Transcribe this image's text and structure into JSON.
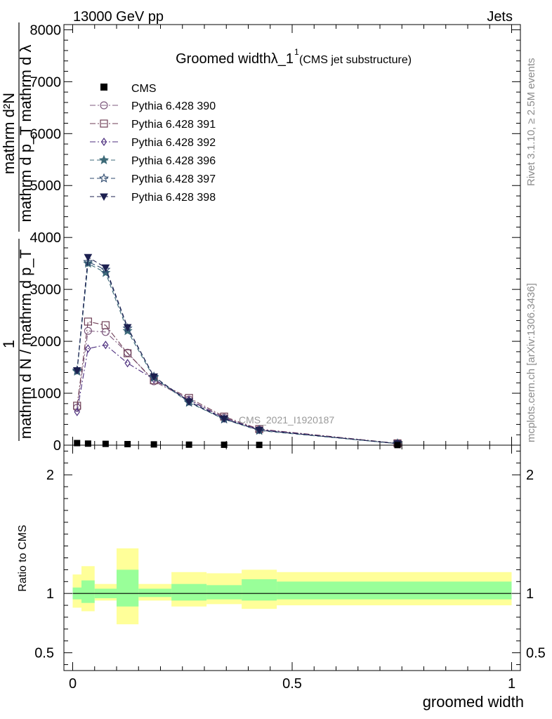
{
  "header": {
    "left": "13000 GeV pp",
    "right": "Jets"
  },
  "side_labels": {
    "top": "Rivet 3.1.10, ≥ 2.5M events",
    "bottom": "mcplots.cern.ch [arXiv:1306.3436]"
  },
  "watermark": "CMS_2021_I1920187",
  "chart_data": {
    "type": "line",
    "title": "Groomed widthλ_1",
    "title_sup": "1",
    "subtitle": "(CMS jet substructure)",
    "ylabel_num": "mathrm d²N",
    "ylabel_den": "mathrm d p_T mathrm d λ",
    "ylabel_frac_num": "1",
    "ylabel_frac_den": "mathrm d N / mathrm d p_T",
    "xlabel": "groomed width",
    "ratio_ylabel": "Ratio to CMS",
    "xlim": [
      -0.02,
      1.02
    ],
    "ylim": [
      0,
      8100
    ],
    "ratio_ylim": [
      0.35,
      2.25
    ],
    "x_ticks": [
      "0",
      "0.5",
      "1"
    ],
    "y_ticks": [
      "0",
      "1000",
      "2000",
      "3000",
      "4000",
      "5000",
      "6000",
      "7000",
      "8000"
    ],
    "ratio_ticks": [
      "0.5",
      "1",
      "2"
    ],
    "x": [
      0.01,
      0.035,
      0.075,
      0.125,
      0.185,
      0.265,
      0.345,
      0.425,
      0.74
    ],
    "cms": [
      40,
      30,
      25,
      20,
      15,
      10,
      8,
      5,
      2
    ],
    "series": [
      {
        "name": "Pythia 6.428 390",
        "marker": "circle-open",
        "dash": "8,3,2,3",
        "color": "#7e5a7e",
        "values": [
          720,
          2200,
          2180,
          1780,
          1230,
          880,
          530,
          300,
          30
        ]
      },
      {
        "name": "Pythia 6.428 391",
        "marker": "square-open",
        "dash": "8,3,2,3",
        "color": "#6e3e55",
        "values": [
          760,
          2380,
          2310,
          1770,
          1250,
          910,
          550,
          310,
          35
        ]
      },
      {
        "name": "Pythia 6.428 392",
        "marker": "diamond-open",
        "dash": "8,3,2,3",
        "color": "#4c2e7e",
        "values": [
          640,
          1860,
          1930,
          1580,
          1270,
          870,
          520,
          300,
          30
        ]
      },
      {
        "name": "Pythia 6.428 396",
        "marker": "star-filled",
        "dash": "6,4",
        "color": "#3d6a78",
        "values": [
          1420,
          3500,
          3320,
          2200,
          1300,
          820,
          500,
          280,
          30
        ]
      },
      {
        "name": "Pythia 6.428 397",
        "marker": "star-open",
        "dash": "6,4",
        "color": "#2e4a6e",
        "values": [
          1440,
          3530,
          3380,
          2250,
          1320,
          830,
          500,
          290,
          30
        ]
      },
      {
        "name": "Pythia 6.428 398",
        "marker": "triangle-down-filled",
        "dash": "6,4",
        "color": "#1c2050",
        "values": [
          1440,
          3620,
          3420,
          2270,
          1320,
          840,
          510,
          290,
          30
        ]
      }
    ],
    "cms_name": "CMS",
    "band_bins": [
      {
        "x0": 0.0,
        "x1": 0.02,
        "in": [
          0.95,
          1.05
        ],
        "out": [
          0.88,
          1.16
        ]
      },
      {
        "x0": 0.02,
        "x1": 0.05,
        "in": [
          0.92,
          1.11
        ],
        "out": [
          0.85,
          1.23
        ]
      },
      {
        "x0": 0.05,
        "x1": 0.1,
        "in": [
          0.96,
          1.04
        ],
        "out": [
          0.94,
          1.08
        ]
      },
      {
        "x0": 0.1,
        "x1": 0.15,
        "in": [
          0.89,
          1.2
        ],
        "out": [
          0.74,
          1.38
        ]
      },
      {
        "x0": 0.15,
        "x1": 0.225,
        "in": [
          0.97,
          1.04
        ],
        "out": [
          0.94,
          1.08
        ]
      },
      {
        "x0": 0.225,
        "x1": 0.305,
        "in": [
          0.94,
          1.08
        ],
        "out": [
          0.89,
          1.18
        ]
      },
      {
        "x0": 0.305,
        "x1": 0.385,
        "in": [
          0.95,
          1.07
        ],
        "out": [
          0.91,
          1.17
        ]
      },
      {
        "x0": 0.385,
        "x1": 0.465,
        "in": [
          0.94,
          1.12
        ],
        "out": [
          0.87,
          1.2
        ]
      },
      {
        "x0": 0.465,
        "x1": 1.0,
        "in": [
          0.95,
          1.1
        ],
        "out": [
          0.9,
          1.18
        ]
      }
    ]
  }
}
